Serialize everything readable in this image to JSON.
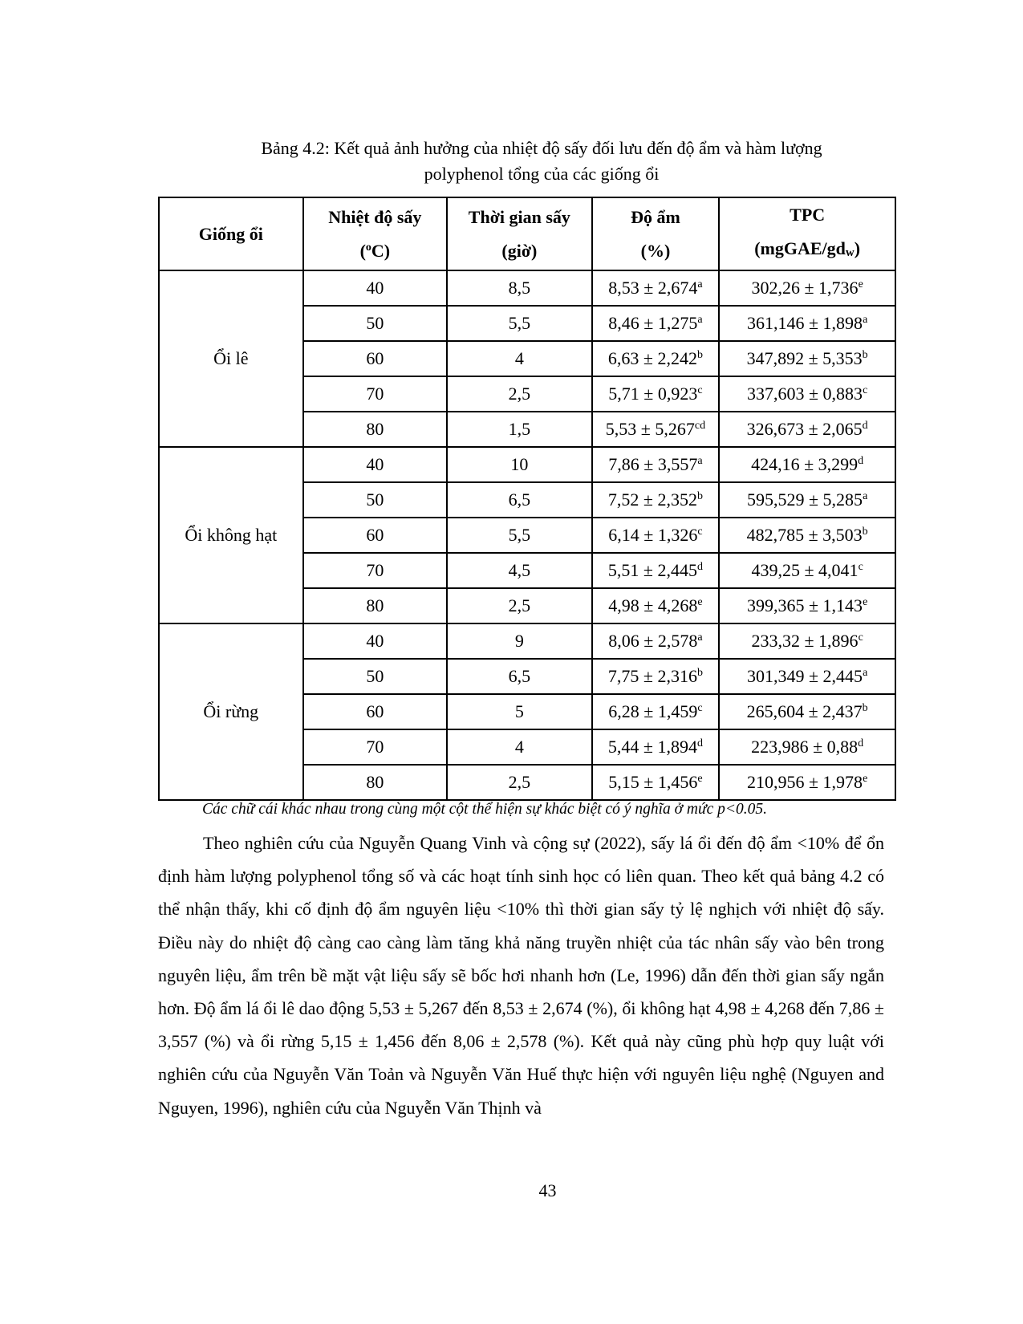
{
  "caption": {
    "line1": "Bảng 4.2: Kết quả ảnh hưởng của nhiệt độ sấy đối lưu đến độ ẩm và hàm lượng",
    "line2": "polyphenol tổng của các giống ổi"
  },
  "table": {
    "headers": [
      {
        "line1": "Giống ổi",
        "line2": ""
      },
      {
        "line1": "Nhiệt độ sấy",
        "line2": "(oC)"
      },
      {
        "line1": "Thời gian sấy",
        "line2": "(giờ)"
      },
      {
        "line1": "Độ ẩm",
        "line2": "(%)"
      },
      {
        "line1": "TPC",
        "line2": "(mgGAE/gdw)"
      }
    ],
    "groups": [
      {
        "name": "Ổi lê",
        "rows": [
          {
            "temp": "40",
            "time": "8,5",
            "moisture": "8,53 ± 2,674",
            "m_sup": "a",
            "tpc": "302,26 ± 1,736",
            "t_sup": "e"
          },
          {
            "temp": "50",
            "time": "5,5",
            "moisture": "8,46 ± 1,275",
            "m_sup": "a",
            "tpc": "361,146 ± 1,898",
            "t_sup": "a"
          },
          {
            "temp": "60",
            "time": "4",
            "moisture": "6,63 ± 2,242",
            "m_sup": "b",
            "tpc": "347,892 ± 5,353",
            "t_sup": "b"
          },
          {
            "temp": "70",
            "time": "2,5",
            "moisture": "5,71 ± 0,923",
            "m_sup": "c",
            "tpc": "337,603 ± 0,883",
            "t_sup": "c"
          },
          {
            "temp": "80",
            "time": "1,5",
            "moisture": "5,53 ± 5,267",
            "m_sup": "cd",
            "tpc": "326,673 ± 2,065",
            "t_sup": "d"
          }
        ]
      },
      {
        "name": "Ổi không hạt",
        "rows": [
          {
            "temp": "40",
            "time": "10",
            "moisture": "7,86 ± 3,557",
            "m_sup": "a",
            "tpc": "424,16 ± 3,299",
            "t_sup": "d"
          },
          {
            "temp": "50",
            "time": "6,5",
            "moisture": "7,52 ± 2,352",
            "m_sup": "b",
            "tpc": "595,529 ± 5,285",
            "t_sup": "a"
          },
          {
            "temp": "60",
            "time": "5,5",
            "moisture": "6,14 ± 1,326",
            "m_sup": "c",
            "tpc": "482,785 ± 3,503",
            "t_sup": "b"
          },
          {
            "temp": "70",
            "time": "4,5",
            "moisture": "5,51 ± 2,445",
            "m_sup": "d",
            "tpc": "439,25 ± 4,041",
            "t_sup": "c"
          },
          {
            "temp": "80",
            "time": "2,5",
            "moisture": "4,98 ± 4,268",
            "m_sup": "e",
            "tpc": "399,365 ± 1,143",
            "t_sup": "e"
          }
        ]
      },
      {
        "name": "Ổi rừng",
        "rows": [
          {
            "temp": "40",
            "time": "9",
            "moisture": "8,06 ± 2,578",
            "m_sup": "a",
            "tpc": "233,32 ± 1,896",
            "t_sup": "c"
          },
          {
            "temp": "50",
            "time": "6,5",
            "moisture": "7,75 ± 2,316",
            "m_sup": "b",
            "tpc": "301,349 ± 2,445",
            "t_sup": "a"
          },
          {
            "temp": "60",
            "time": "5",
            "moisture": "6,28 ± 1,459",
            "m_sup": "c",
            "tpc": "265,604 ± 2,437",
            "t_sup": "b"
          },
          {
            "temp": "70",
            "time": "4",
            "moisture": "5,44 ± 1,894",
            "m_sup": "d",
            "tpc": "223,986 ± 0,88",
            "t_sup": "d"
          },
          {
            "temp": "80",
            "time": "2,5",
            "moisture": "5,15 ± 1,456",
            "m_sup": "e",
            "tpc": "210,956 ± 1,978",
            "t_sup": "e"
          }
        ]
      }
    ]
  },
  "note": "Các chữ cái khác nhau trong cùng một cột thể hiện sự khác biệt có ý nghĩa ở mức p<0.05.",
  "paragraph": "Theo nghiên cứu của Nguyễn Quang Vinh và cộng sự (2022), sấy lá ổi đến độ ẩm <10% để ổn định hàm lượng polyphenol tổng số và các hoạt tính sinh học có liên quan. Theo kết quả bảng 4.2 có thể nhận thấy, khi cố định độ ẩm nguyên liệu <10% thì thời gian sấy tỷ lệ nghịch với nhiệt độ sấy. Điều này do nhiệt độ càng cao càng làm tăng khả năng truyền nhiệt của tác nhân sấy vào bên trong nguyên liệu, ẩm trên bề mặt vật liệu sấy sẽ bốc hơi nhanh hơn (Le, 1996) dẫn đến thời gian sấy ngắn hơn. Độ ẩm lá ổi lê dao động 5,53 ± 5,267 đến 8,53 ± 2,674 (%), ổi không hạt 4,98 ± 4,268 đến 7,86 ± 3,557 (%) và ổi rừng 5,15 ± 1,456 đến 8,06 ± 2,578 (%). Kết quả này cũng phù hợp quy luật với nghiên cứu của Nguyễn Văn Toản và Nguyễn Văn Huế thực hiện với nguyên liệu nghệ (Nguyen and Nguyen, 1996), nghiên cứu của Nguyễn Văn Thịnh và",
  "page_number": "43"
}
